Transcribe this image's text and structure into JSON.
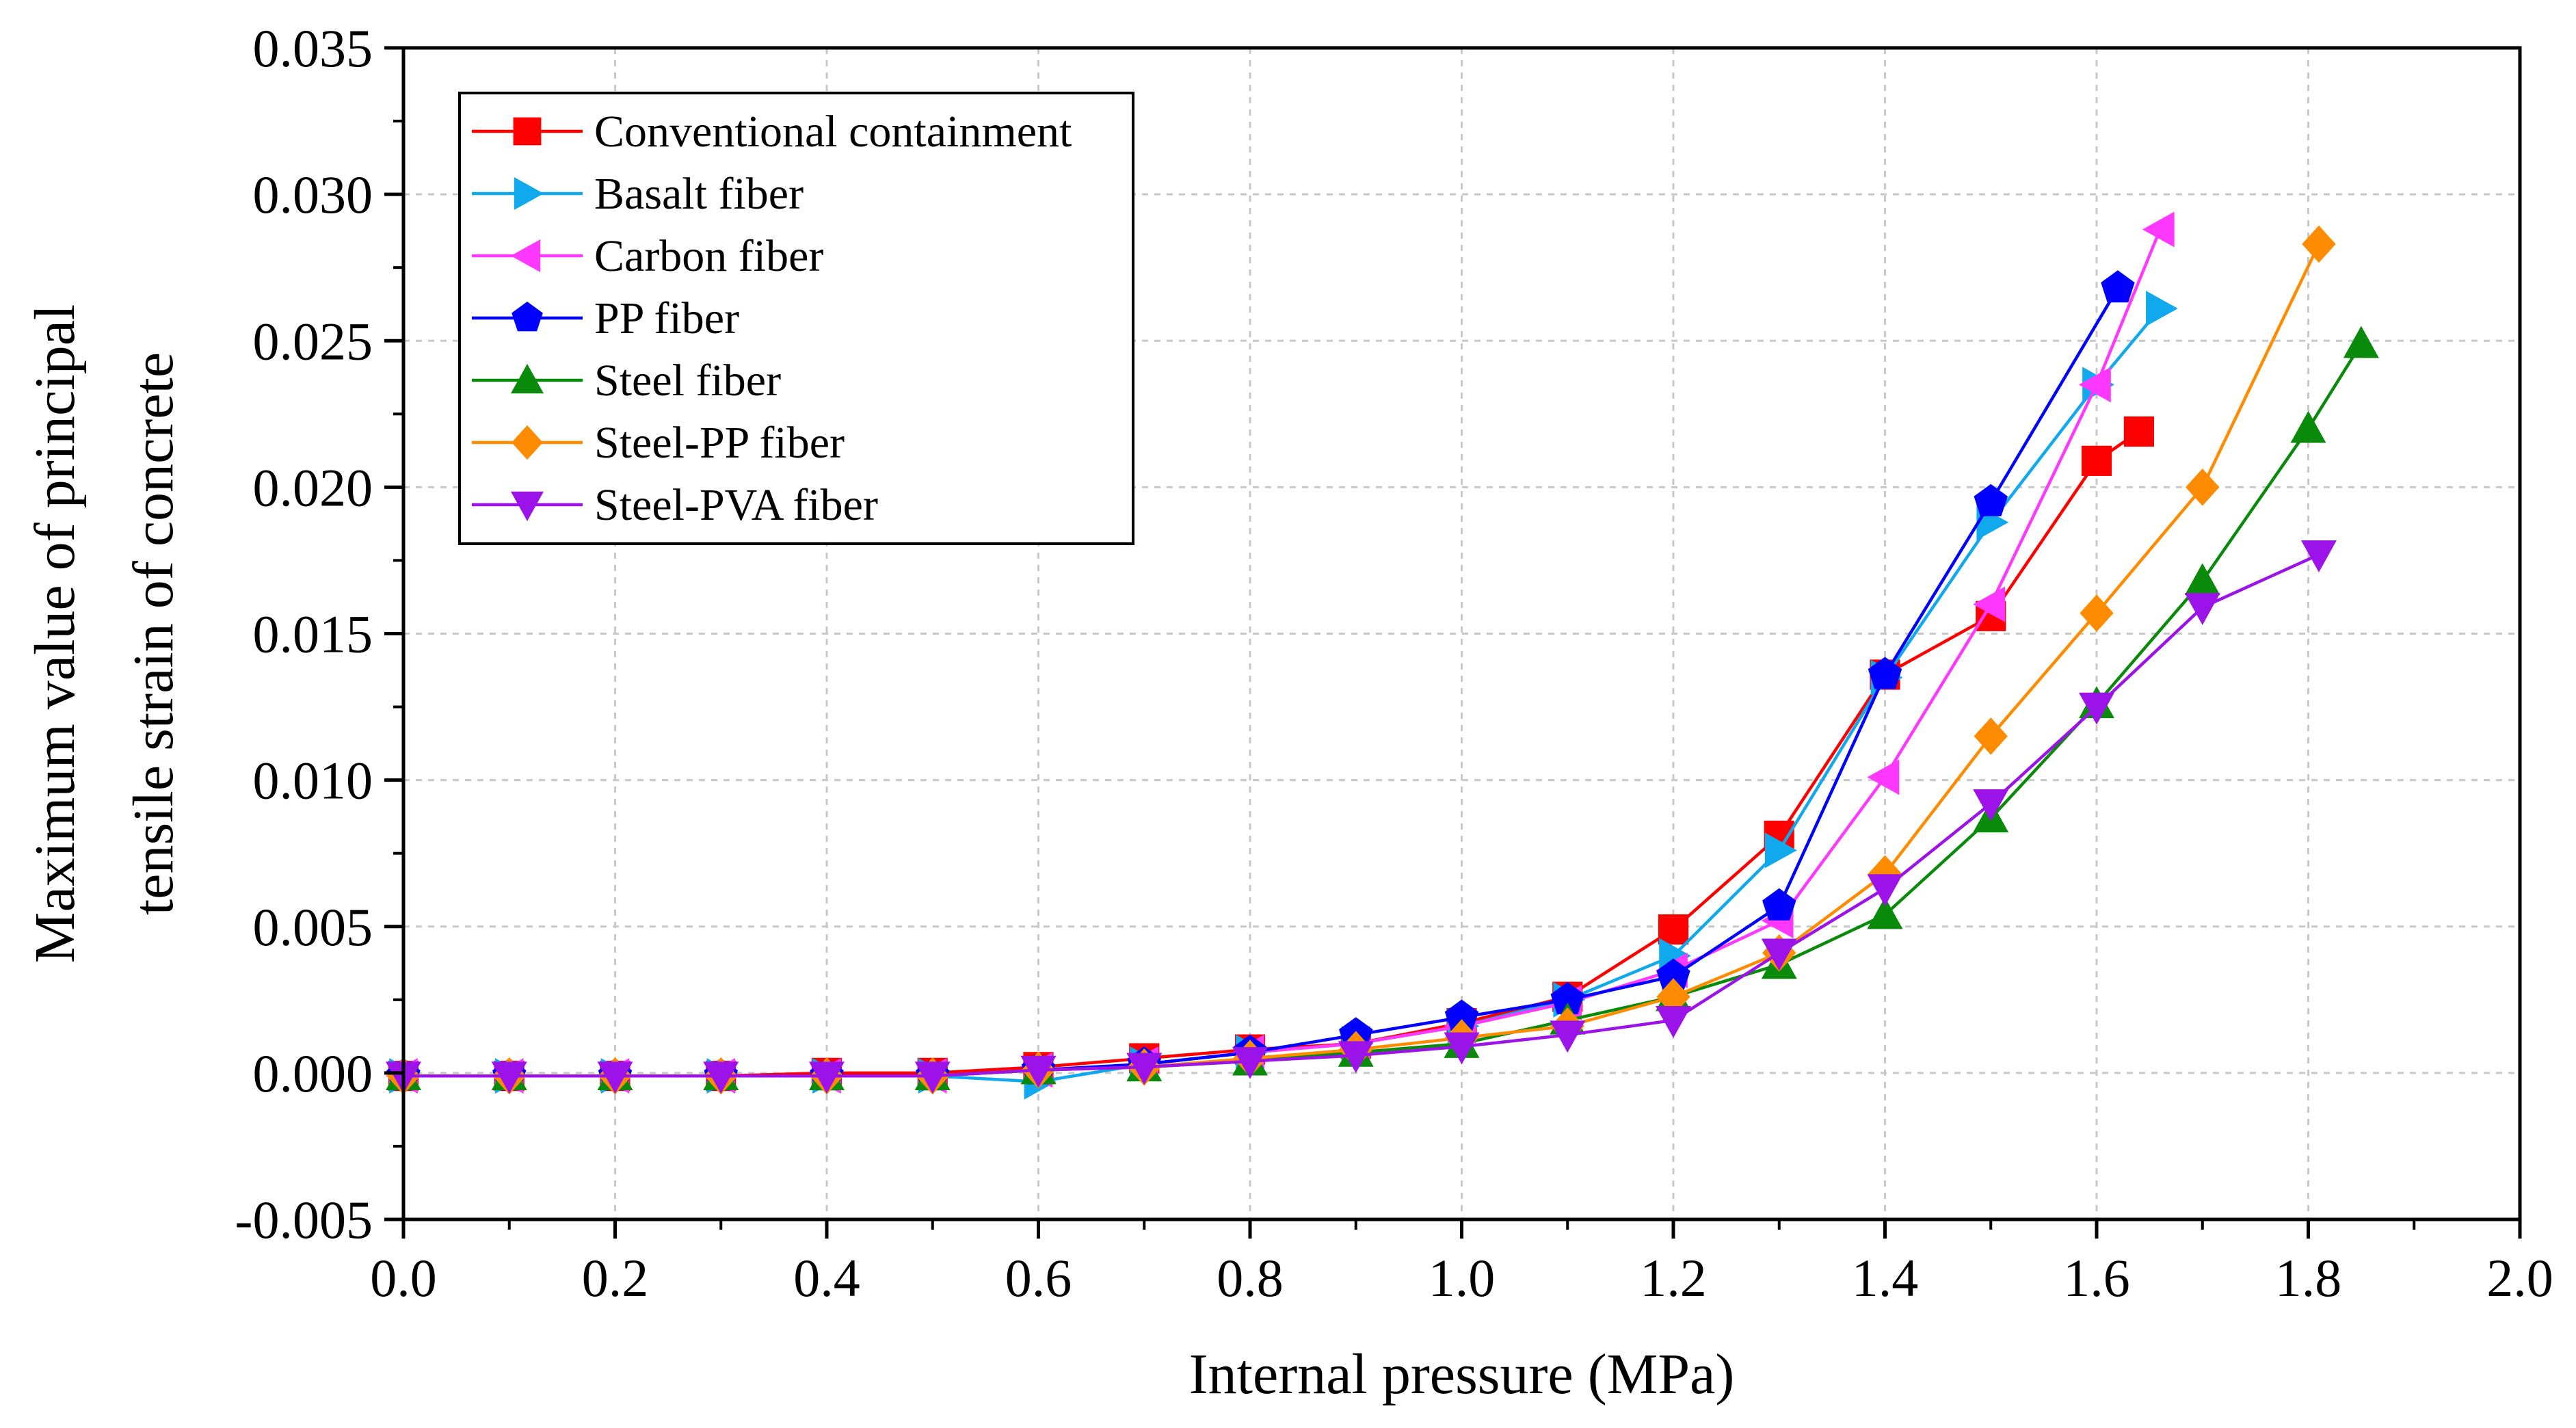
{
  "chart_data": {
    "type": "line",
    "title": "",
    "xlabel": "Internal pressure (MPa)",
    "ylabel_lines": [
      "Maximum value of principal",
      "tensile strain of concrete"
    ],
    "xlim": [
      0.0,
      2.0
    ],
    "ylim": [
      -0.005,
      0.035
    ],
    "x_ticks": [
      "0.0",
      "0.2",
      "0.4",
      "0.6",
      "0.8",
      "1.0",
      "1.2",
      "1.4",
      "1.6",
      "1.8",
      "2.0"
    ],
    "y_ticks": [
      "-0.005",
      "0.000",
      "0.005",
      "0.010",
      "0.015",
      "0.020",
      "0.025",
      "0.030",
      "0.035"
    ],
    "grid": true,
    "legend_position": "top-left",
    "series": [
      {
        "name": "Conventional containment",
        "color": "#ff0000",
        "marker": "square",
        "x": [
          0.0,
          0.1,
          0.2,
          0.3,
          0.4,
          0.5,
          0.6,
          0.7,
          0.8,
          0.9,
          1.0,
          1.1,
          1.2,
          1.3,
          1.4,
          1.5,
          1.6,
          1.64
        ],
        "y": [
          -0.0001,
          -0.0001,
          -0.0001,
          -0.0001,
          0.0,
          0.0,
          0.0002,
          0.0005,
          0.0008,
          0.001,
          0.0017,
          0.0026,
          0.0049,
          0.0081,
          0.0136,
          0.0156,
          0.0209,
          0.0219
        ]
      },
      {
        "name": "Basalt fiber",
        "color": "#11a9ee",
        "marker": "triangle-right",
        "x": [
          0.0,
          0.1,
          0.2,
          0.3,
          0.4,
          0.5,
          0.6,
          0.7,
          0.8,
          0.9,
          1.0,
          1.1,
          1.2,
          1.3,
          1.4,
          1.5,
          1.6,
          1.66
        ],
        "y": [
          -0.0001,
          -0.0001,
          -0.0001,
          -0.0001,
          -0.0001,
          -0.0001,
          -0.0003,
          0.0003,
          0.0007,
          0.001,
          0.0016,
          0.0025,
          0.004,
          0.0076,
          0.0135,
          0.0188,
          0.0235,
          0.0261
        ]
      },
      {
        "name": "Carbon fiber",
        "color": "#ff38ff",
        "marker": "triangle-left",
        "x": [
          0.0,
          0.1,
          0.2,
          0.3,
          0.4,
          0.5,
          0.6,
          0.7,
          0.8,
          0.9,
          1.0,
          1.1,
          1.2,
          1.3,
          1.4,
          1.5,
          1.6,
          1.66
        ],
        "y": [
          -0.0001,
          -0.0001,
          -0.0001,
          -0.0001,
          -0.0001,
          -0.0001,
          0.0001,
          0.0003,
          0.0007,
          0.001,
          0.0016,
          0.0024,
          0.0035,
          0.0052,
          0.0101,
          0.016,
          0.0235,
          0.0288
        ]
      },
      {
        "name": "PP fiber",
        "color": "#0000ff",
        "marker": "pentagon",
        "x": [
          0.0,
          0.1,
          0.2,
          0.3,
          0.4,
          0.5,
          0.6,
          0.7,
          0.8,
          0.9,
          1.0,
          1.1,
          1.2,
          1.3,
          1.4,
          1.5,
          1.62
        ],
        "y": [
          -0.0001,
          -0.0001,
          -0.0001,
          -0.0001,
          -0.0001,
          -0.0001,
          0.0001,
          0.0003,
          0.0007,
          0.0013,
          0.0019,
          0.0025,
          0.0033,
          0.0057,
          0.0136,
          0.0195,
          0.0268
        ]
      },
      {
        "name": "Steel fiber",
        "color": "#0a8a0a",
        "marker": "triangle-up",
        "x": [
          0.0,
          0.1,
          0.2,
          0.3,
          0.4,
          0.5,
          0.6,
          0.7,
          0.8,
          0.9,
          1.0,
          1.1,
          1.2,
          1.3,
          1.4,
          1.5,
          1.6,
          1.7,
          1.8,
          1.85
        ],
        "y": [
          -0.0001,
          -0.0001,
          -0.0001,
          -0.0001,
          -0.0001,
          -0.0001,
          0.0001,
          0.0002,
          0.0004,
          0.0007,
          0.001,
          0.0018,
          0.0026,
          0.0037,
          0.0054,
          0.0087,
          0.0126,
          0.0168,
          0.022,
          0.0249
        ]
      },
      {
        "name": "Steel-PP fiber",
        "color": "#ff8c00",
        "marker": "diamond",
        "x": [
          0.0,
          0.1,
          0.2,
          0.3,
          0.4,
          0.5,
          0.6,
          0.7,
          0.8,
          0.9,
          1.0,
          1.1,
          1.2,
          1.3,
          1.4,
          1.5,
          1.6,
          1.7,
          1.81
        ],
        "y": [
          -0.0001,
          -0.0001,
          -0.0001,
          -0.0001,
          -0.0001,
          -0.0001,
          0.0001,
          0.0002,
          0.0005,
          0.0008,
          0.0012,
          0.0016,
          0.0026,
          0.0041,
          0.0068,
          0.0115,
          0.0157,
          0.02,
          0.0283
        ]
      },
      {
        "name": "Steel-PVA fiber",
        "color": "#9b13e8",
        "marker": "triangle-down",
        "x": [
          0.0,
          0.1,
          0.2,
          0.3,
          0.4,
          0.5,
          0.6,
          0.7,
          0.8,
          0.9,
          1.0,
          1.1,
          1.2,
          1.3,
          1.4,
          1.5,
          1.6,
          1.7,
          1.81
        ],
        "y": [
          -0.0001,
          -0.0001,
          -0.0001,
          -0.0001,
          -0.0001,
          -0.0001,
          0.0001,
          0.0002,
          0.0004,
          0.0006,
          0.0009,
          0.0013,
          0.0018,
          0.0041,
          0.0063,
          0.0092,
          0.0125,
          0.0159,
          0.0177
        ]
      }
    ]
  }
}
